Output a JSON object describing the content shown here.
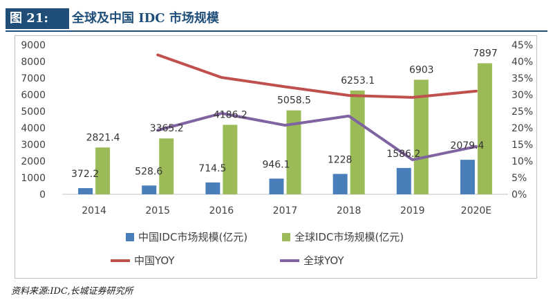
{
  "header": {
    "fig_label": "图 21:",
    "title": "全球及中国 IDC 市场规模"
  },
  "source": "资料来源:IDC,长城证券研究所",
  "chart_data": {
    "type": "bar",
    "categories": [
      "2014",
      "2015",
      "2016",
      "2017",
      "2018",
      "2019",
      "2020E"
    ],
    "series": [
      {
        "name": "中国IDC市场规模(亿元)",
        "type": "bar",
        "axis": "left",
        "color": "#4a7ebb",
        "values": [
          372.2,
          528.6,
          714.5,
          946.1,
          1228,
          1586.2,
          2079.4
        ]
      },
      {
        "name": "全球IDC市场规模(亿元)",
        "type": "bar",
        "axis": "left",
        "color": "#9bbb59",
        "values": [
          2821.4,
          3365.2,
          4186.2,
          5058.5,
          6253.1,
          6903,
          7897
        ]
      },
      {
        "name": "中国YOY",
        "type": "line",
        "axis": "right",
        "color": "#c0504d",
        "values": [
          null,
          42.0,
          35.2,
          32.4,
          29.8,
          29.2,
          31.1
        ]
      },
      {
        "name": "全球YOY",
        "type": "line",
        "axis": "right",
        "color": "#8064a2",
        "values": [
          null,
          19.3,
          24.4,
          20.8,
          23.6,
          10.4,
          14.4
        ]
      }
    ],
    "data_labels": {
      "china": [
        "372.2",
        "528.6",
        "714.5",
        "946.1",
        "1228",
        "1586.2",
        "2079.4"
      ],
      "global": [
        "2821.4",
        "3365.2",
        "4186.2",
        "5058.5",
        "6253.1",
        "6903",
        "7897"
      ]
    },
    "y_left": {
      "lim": [
        0,
        9000
      ],
      "ticks": [
        "0",
        "1000",
        "2000",
        "3000",
        "4000",
        "5000",
        "6000",
        "7000",
        "8000",
        "9000"
      ]
    },
    "y_right": {
      "lim": [
        0,
        45
      ],
      "ticks": [
        "0%",
        "5%",
        "10%",
        "15%",
        "20%",
        "25%",
        "30%",
        "35%",
        "40%",
        "45%"
      ]
    },
    "legend_placement": "bottom",
    "grid": false
  }
}
